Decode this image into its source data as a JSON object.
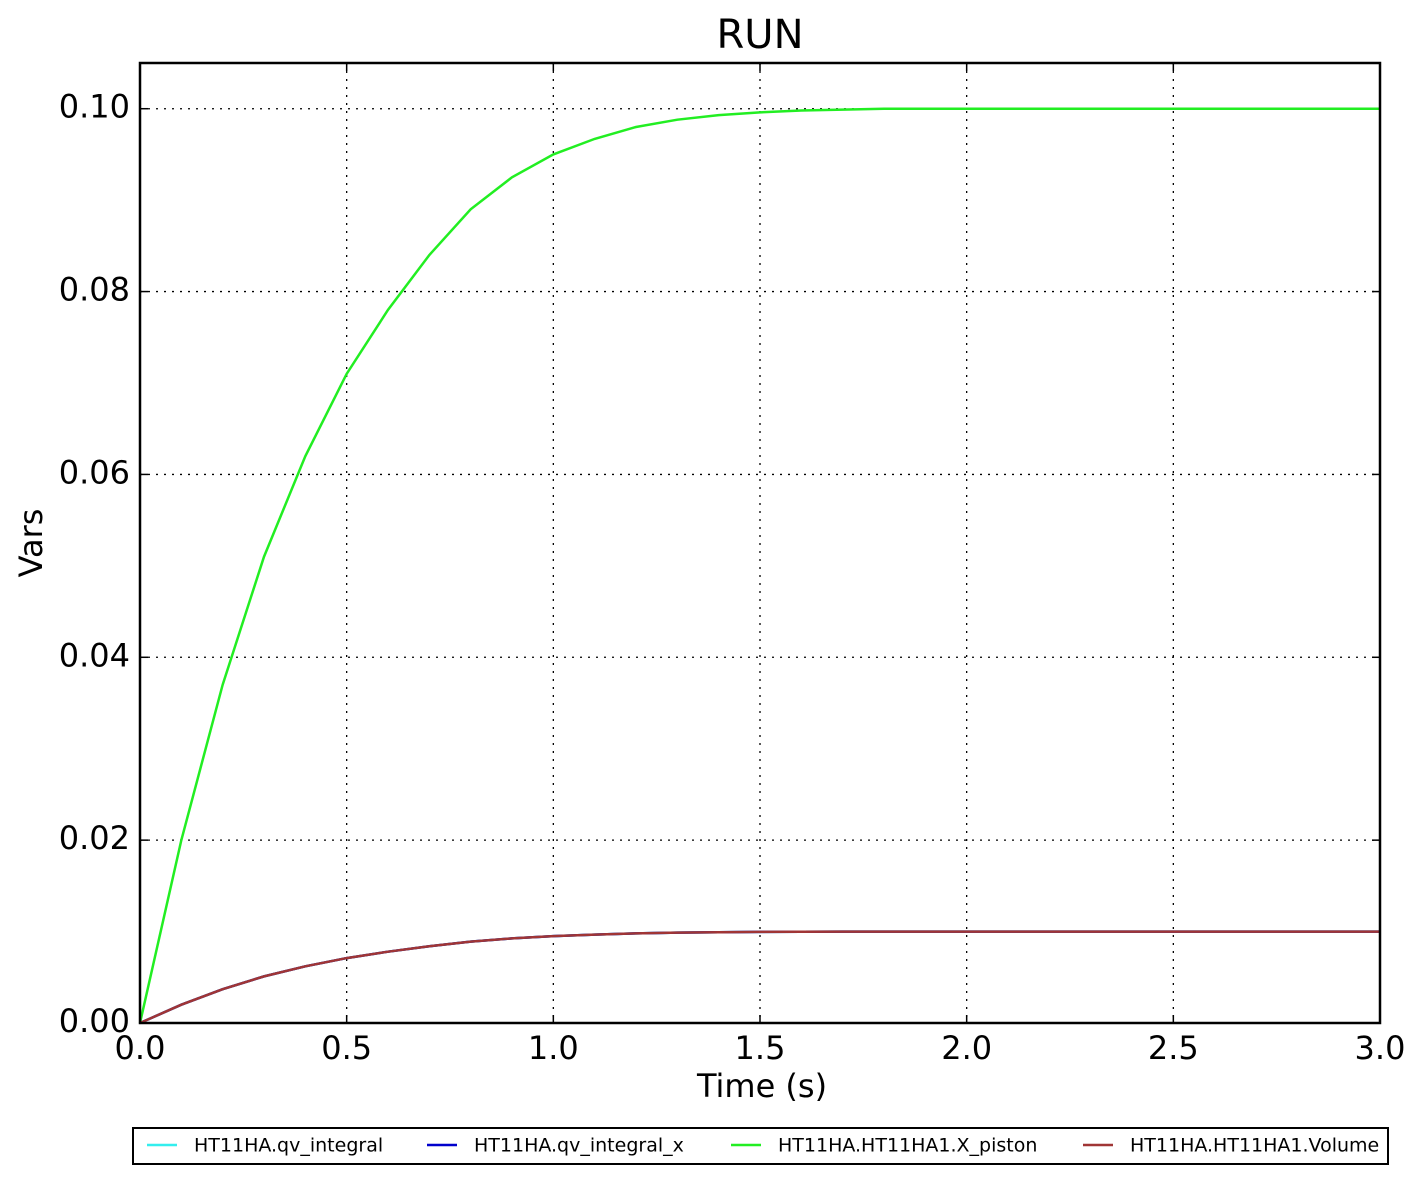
{
  "chart_data": {
    "type": "line",
    "title": "RUN",
    "x_label": "Time (s)",
    "y_label": "Vars",
    "x": [
      0,
      0.1,
      0.2,
      0.3,
      0.4,
      0.5,
      0.6,
      0.7,
      0.8,
      0.9,
      1.0,
      1.1,
      1.2,
      1.3,
      1.4,
      1.5,
      1.6,
      1.7,
      1.8,
      1.9,
      2.0,
      2.1,
      2.2,
      2.3,
      2.4,
      2.5,
      2.6,
      2.7,
      2.8,
      2.9,
      3.0
    ],
    "series": [
      {
        "name": "HT11HA.qv_integral",
        "color": "#33eeee",
        "values": [
          0,
          0.002,
          0.0037,
          0.0051,
          0.0062,
          0.0071,
          0.0078,
          0.0084,
          0.0089,
          0.00925,
          0.0095,
          0.00967,
          0.0098,
          0.00988,
          0.00993,
          0.00996,
          0.00998,
          0.00999,
          0.01,
          0.01,
          0.01,
          0.01,
          0.01,
          0.01,
          0.01,
          0.01,
          0.01,
          0.01,
          0.01,
          0.01,
          0.01
        ]
      },
      {
        "name": "HT11HA.qv_integral_x",
        "color": "#0000cc",
        "values": [
          0,
          0.002,
          0.0037,
          0.0051,
          0.0062,
          0.0071,
          0.0078,
          0.0084,
          0.0089,
          0.00925,
          0.0095,
          0.00967,
          0.0098,
          0.00988,
          0.00993,
          0.00996,
          0.00998,
          0.00999,
          0.01,
          0.01,
          0.01,
          0.01,
          0.01,
          0.01,
          0.01,
          0.01,
          0.01,
          0.01,
          0.01,
          0.01,
          0.01
        ]
      },
      {
        "name": "HT11HA.HT11HA1.X_piston",
        "color": "#22ee22",
        "values": [
          0,
          0.02,
          0.037,
          0.051,
          0.062,
          0.071,
          0.078,
          0.084,
          0.089,
          0.0925,
          0.095,
          0.0967,
          0.098,
          0.0988,
          0.0993,
          0.0996,
          0.0998,
          0.0999,
          0.1,
          0.1,
          0.1,
          0.1,
          0.1,
          0.1,
          0.1,
          0.1,
          0.1,
          0.1,
          0.1,
          0.1,
          0.1
        ]
      },
      {
        "name": "HT11HA.HT11HA1.Volume",
        "color": "#a03535",
        "values": [
          0,
          0.002,
          0.0037,
          0.0051,
          0.0062,
          0.0071,
          0.0078,
          0.0084,
          0.0089,
          0.00925,
          0.0095,
          0.00967,
          0.0098,
          0.00988,
          0.00993,
          0.00996,
          0.00998,
          0.00999,
          0.01,
          0.01,
          0.01,
          0.01,
          0.01,
          0.01,
          0.01,
          0.01,
          0.01,
          0.01,
          0.01,
          0.01,
          0.01
        ]
      }
    ],
    "xlim": [
      0,
      3
    ],
    "ylim": [
      0,
      0.105
    ],
    "xticks": [
      {
        "value": 0,
        "label": "0.0"
      },
      0.5,
      {
        "value": 1,
        "label": "1.0"
      },
      1.5,
      {
        "value": 2,
        "label": "2.0"
      },
      2.5,
      {
        "value": 3,
        "label": "3.0"
      }
    ],
    "yticks": [
      {
        "value": 0,
        "label": "0.00"
      },
      0.02,
      0.04,
      0.06,
      0.08,
      {
        "value": 0.1,
        "label": "0.10"
      }
    ],
    "grid": true,
    "legend": "bottom"
  }
}
